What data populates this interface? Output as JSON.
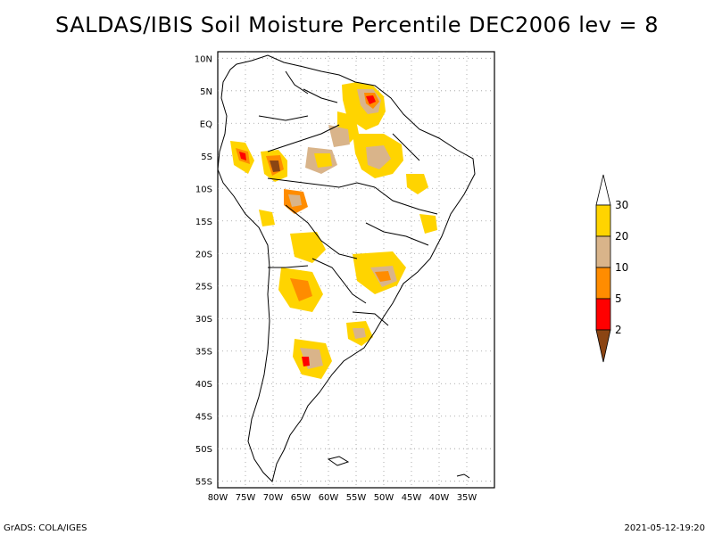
{
  "title": "SALDAS/IBIS Soil Moisture Percentile DEC2006 lev = 8",
  "map": {
    "region": "South America",
    "lon_range": [
      -80,
      -30
    ],
    "lat_range": [
      -56,
      11
    ],
    "lon_ticks": [
      "80W",
      "75W",
      "70W",
      "65W",
      "60W",
      "55W",
      "50W",
      "45W",
      "40W",
      "35W"
    ],
    "lat_ticks": [
      "10N",
      "5N",
      "EQ",
      "5S",
      "10S",
      "15S",
      "20S",
      "25S",
      "30S",
      "35S",
      "40S",
      "45S",
      "50S",
      "55S"
    ],
    "gridlines": true
  },
  "legend": {
    "labels": [
      "30",
      "20",
      "10",
      "5",
      "2"
    ],
    "colors": {
      "above_30": "#ffffff",
      "20_30": "#ffd400",
      "10_20": "#d9b48a",
      "5_10": "#ff8c00",
      "2_5": "#ff0000",
      "below_2": "#8b4513"
    }
  },
  "footer": {
    "left": "GrADS: COLA/IGES",
    "right": "2021-05-12-19:20"
  }
}
